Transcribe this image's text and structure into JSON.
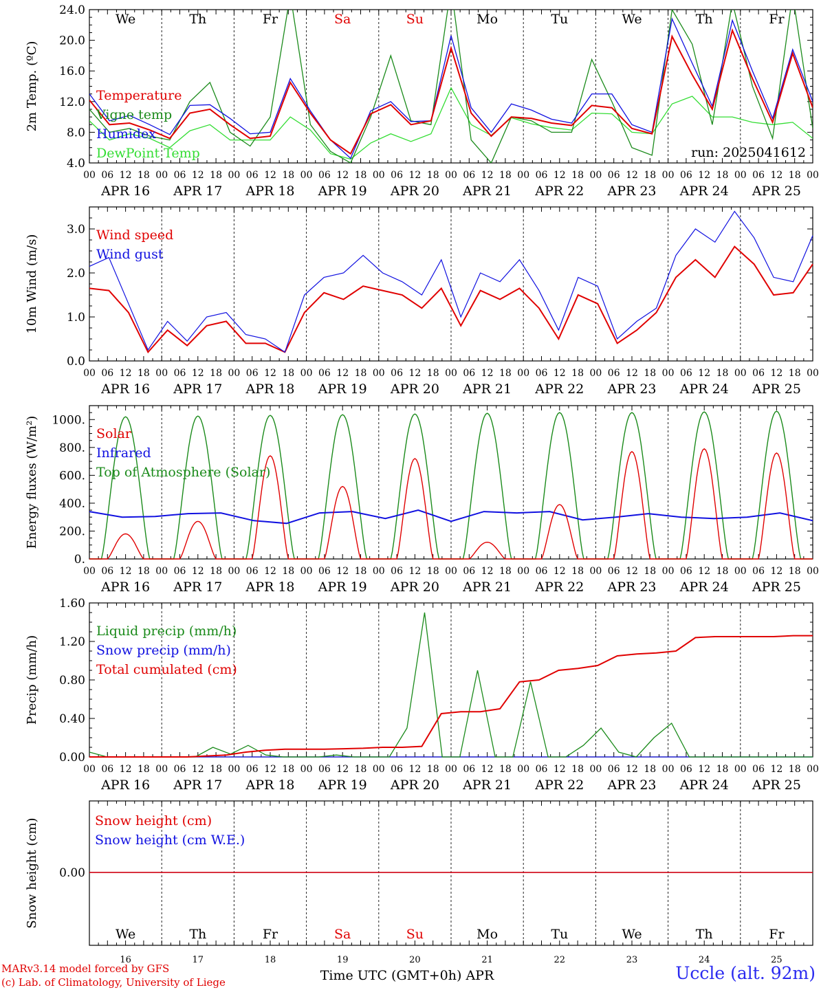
{
  "days": [
    "16",
    "17",
    "18",
    "19",
    "20",
    "21",
    "22",
    "23",
    "24",
    "25"
  ],
  "weekdays": [
    {
      "label": "We",
      "weekend": false
    },
    {
      "label": "Th",
      "weekend": false
    },
    {
      "label": "Fr",
      "weekend": false
    },
    {
      "label": "Sa",
      "weekend": true
    },
    {
      "label": "Su",
      "weekend": true
    },
    {
      "label": "Mo",
      "weekend": false
    },
    {
      "label": "Tu",
      "weekend": false
    },
    {
      "label": "We",
      "weekend": false
    },
    {
      "label": "Th",
      "weekend": false
    },
    {
      "label": "Fr",
      "weekend": false
    }
  ],
  "date_labels": [
    "APR 16",
    "APR 17",
    "APR 18",
    "APR 19",
    "APR 20",
    "APR 21",
    "APR 22",
    "APR 23",
    "APR 24",
    "APR 25"
  ],
  "hour_labels": [
    "00",
    "06",
    "12",
    "18"
  ],
  "run_label": "run: 2025041612",
  "xaxis_title": "Time UTC (GMT+0h) APR",
  "credit_line1": "MARv3.14 model forced by GFS",
  "credit_line2": "(c) Lab. of Climatology, University of Liege",
  "station": "Uccle (alt. 92m)",
  "colors": {
    "red": "#e00000",
    "green": "#1a8a1a",
    "blue": "#1010e0",
    "lightgreen": "#33dd33",
    "weekend": "#e00000"
  },
  "chart_data": [
    {
      "type": "line",
      "ylabel": "2m Temp. (ºC)",
      "ylim": [
        4,
        24
      ],
      "yticks": [
        4,
        8,
        12,
        16,
        20,
        24
      ],
      "ytick_labels": [
        "4.0",
        "8.0",
        "12.0",
        "16.0",
        "20.0",
        "24.0"
      ],
      "series": [
        {
          "name": "Temperature",
          "color": "#e00000",
          "values": [
            12.2,
            9,
            9.2,
            8.3,
            7.2,
            10.5,
            11,
            9,
            7.2,
            7.5,
            14.5,
            10.5,
            7,
            5.2,
            10.4,
            11.6,
            9,
            9.5,
            19,
            10.5,
            7.5,
            10,
            9.8,
            9.2,
            8.9,
            11.5,
            11.2,
            8.5,
            7.8,
            20.5,
            15.5,
            11,
            21.3,
            15,
            9.3,
            18.3,
            11.2
          ]
        },
        {
          "name": "Vigne temp",
          "color": "#1a8a1a",
          "values": [
            11,
            8,
            8.5,
            7.5,
            7,
            12,
            14.5,
            8,
            6.2,
            10,
            26,
            9,
            5.5,
            4,
            10,
            18,
            9.5,
            9,
            27,
            7,
            4,
            10,
            9.5,
            8,
            8,
            17.5,
            12,
            6,
            5,
            24,
            19.5,
            9,
            25,
            14,
            7.2,
            26,
            8.5
          ]
        },
        {
          "name": "Humidex",
          "color": "#1010e0",
          "values": [
            13,
            9.5,
            10.2,
            9,
            7.7,
            11.5,
            11.6,
            9.8,
            7.8,
            8,
            15,
            10.8,
            7,
            4.6,
            10.8,
            12,
            9.4,
            9.5,
            20.6,
            11.2,
            8,
            11.7,
            10.9,
            9.7,
            9.2,
            13,
            13,
            9,
            8,
            22.8,
            17,
            11.4,
            22.6,
            16,
            9.8,
            18.8,
            12
          ]
        },
        {
          "name": "DewPoint Temp",
          "color": "#33dd33",
          "values": [
            9.5,
            7,
            7.8,
            7.2,
            6,
            8.2,
            9,
            7,
            7,
            7,
            10,
            8.3,
            5.2,
            4.5,
            6.6,
            7.8,
            6.8,
            7.8,
            13.8,
            9,
            7.6,
            9.9,
            9.1,
            8.6,
            8.3,
            10.5,
            10.4,
            8,
            7.8,
            11.7,
            12.7,
            10,
            10,
            9.3,
            9,
            9.3,
            7.2
          ]
        }
      ]
    },
    {
      "type": "line",
      "ylabel": "10m Wind (m/s)",
      "ylim": [
        0,
        3.5
      ],
      "yticks": [
        0,
        1,
        2,
        3
      ],
      "ytick_labels": [
        "0.0",
        "1.0",
        "2.0",
        "3.0"
      ],
      "series": [
        {
          "name": "Wind speed",
          "color": "#e00000",
          "values": [
            1.65,
            1.6,
            1.1,
            0.2,
            0.7,
            0.35,
            0.8,
            0.9,
            0.4,
            0.4,
            0.2,
            1.1,
            1.55,
            1.4,
            1.7,
            1.6,
            1.5,
            1.2,
            1.65,
            0.8,
            1.6,
            1.4,
            1.65,
            1.2,
            0.5,
            1.5,
            1.3,
            0.4,
            0.7,
            1.1,
            1.9,
            2.3,
            1.9,
            2.6,
            2.2,
            1.5,
            1.55,
            2.2
          ]
        },
        {
          "name": "Wind gust",
          "color": "#1010e0",
          "values": [
            2.15,
            2.35,
            1.3,
            0.25,
            0.9,
            0.45,
            1,
            1.1,
            0.6,
            0.5,
            0.2,
            1.5,
            1.9,
            2,
            2.4,
            2,
            1.8,
            1.5,
            2.3,
            1,
            2,
            1.8,
            2.3,
            1.6,
            0.7,
            1.9,
            1.7,
            0.5,
            0.9,
            1.2,
            2.4,
            3,
            2.7,
            3.4,
            2.8,
            1.9,
            1.8,
            2.85
          ]
        }
      ]
    },
    {
      "type": "line",
      "ylabel": "Energy fluxes (W/m²)",
      "ylim": [
        0,
        1100
      ],
      "yticks": [
        0,
        200,
        400,
        600,
        800,
        1000
      ],
      "ytick_labels": [
        "0.",
        "200.",
        "400.",
        "600.",
        "800.",
        "1000."
      ],
      "series": [
        {
          "name": "Solar",
          "color": "#e00000",
          "day_peaks": [
            180,
            270,
            740,
            520,
            720,
            120,
            390,
            770,
            790,
            760
          ]
        },
        {
          "name": "Infrared",
          "color": "#1010e0",
          "values": [
            340,
            300,
            305,
            325,
            330,
            275,
            255,
            330,
            340,
            290,
            350,
            270,
            340,
            330,
            340,
            280,
            300,
            325,
            300,
            290,
            300,
            330,
            275
          ]
        },
        {
          "name": "Top of Atmosphere (Solar)",
          "color": "#1a8a1a",
          "day_peaks": [
            1020,
            1025,
            1030,
            1035,
            1040,
            1045,
            1050,
            1050,
            1055,
            1060
          ]
        }
      ]
    },
    {
      "type": "line",
      "ylabel": "Precip (mm/h)",
      "ylim": [
        0,
        1.6
      ],
      "yticks": [
        0,
        0.4,
        0.8,
        1.2,
        1.6
      ],
      "ytick_labels": [
        "0.00",
        "0.40",
        "0.80",
        "1.20",
        "1.60"
      ],
      "series": [
        {
          "name": "Liquid precip (mm/h)",
          "color": "#1a8a1a",
          "values": [
            0.05,
            0,
            0,
            0,
            0,
            0,
            0,
            0.1,
            0.03,
            0.12,
            0.02,
            0,
            0,
            0,
            0.02,
            0,
            0,
            0,
            0.3,
            1.5,
            0,
            0,
            0.9,
            0,
            0,
            0.78,
            0,
            0,
            0.12,
            0.3,
            0.05,
            0,
            0.2,
            0.35,
            0,
            0,
            0,
            0,
            0,
            0,
            0,
            0
          ]
        },
        {
          "name": "Snow precip (mm/h)",
          "color": "#1010e0",
          "values": [
            0,
            0,
            0,
            0,
            0,
            0,
            0,
            0,
            0,
            0,
            0,
            0,
            0,
            0,
            0,
            0,
            0,
            0,
            0,
            0,
            0,
            0,
            0,
            0,
            0,
            0,
            0,
            0,
            0,
            0,
            0,
            0,
            0,
            0,
            0,
            0,
            0,
            0,
            0,
            0,
            0,
            0
          ]
        },
        {
          "name": "Total cumulated (cm)",
          "color": "#e00000",
          "values": [
            0,
            0,
            0,
            0,
            0,
            0,
            0.01,
            0.02,
            0.05,
            0.07,
            0.08,
            0.08,
            0.08,
            0.085,
            0.09,
            0.1,
            0.1,
            0.11,
            0.45,
            0.47,
            0.47,
            0.5,
            0.78,
            0.8,
            0.9,
            0.92,
            0.95,
            1.05,
            1.07,
            1.08,
            1.1,
            1.24,
            1.25,
            1.25,
            1.25,
            1.25,
            1.26,
            1.26
          ]
        }
      ]
    },
    {
      "type": "line",
      "ylabel": "Snow height (cm)",
      "ytick_labels": [
        "0.00"
      ],
      "series": [
        {
          "name": "Snow height (cm)",
          "color": "#e00000",
          "values": [
            0,
            0
          ]
        },
        {
          "name": "Snow height (cm W.E.)",
          "color": "#1010e0",
          "values": [
            0,
            0
          ]
        }
      ]
    }
  ]
}
